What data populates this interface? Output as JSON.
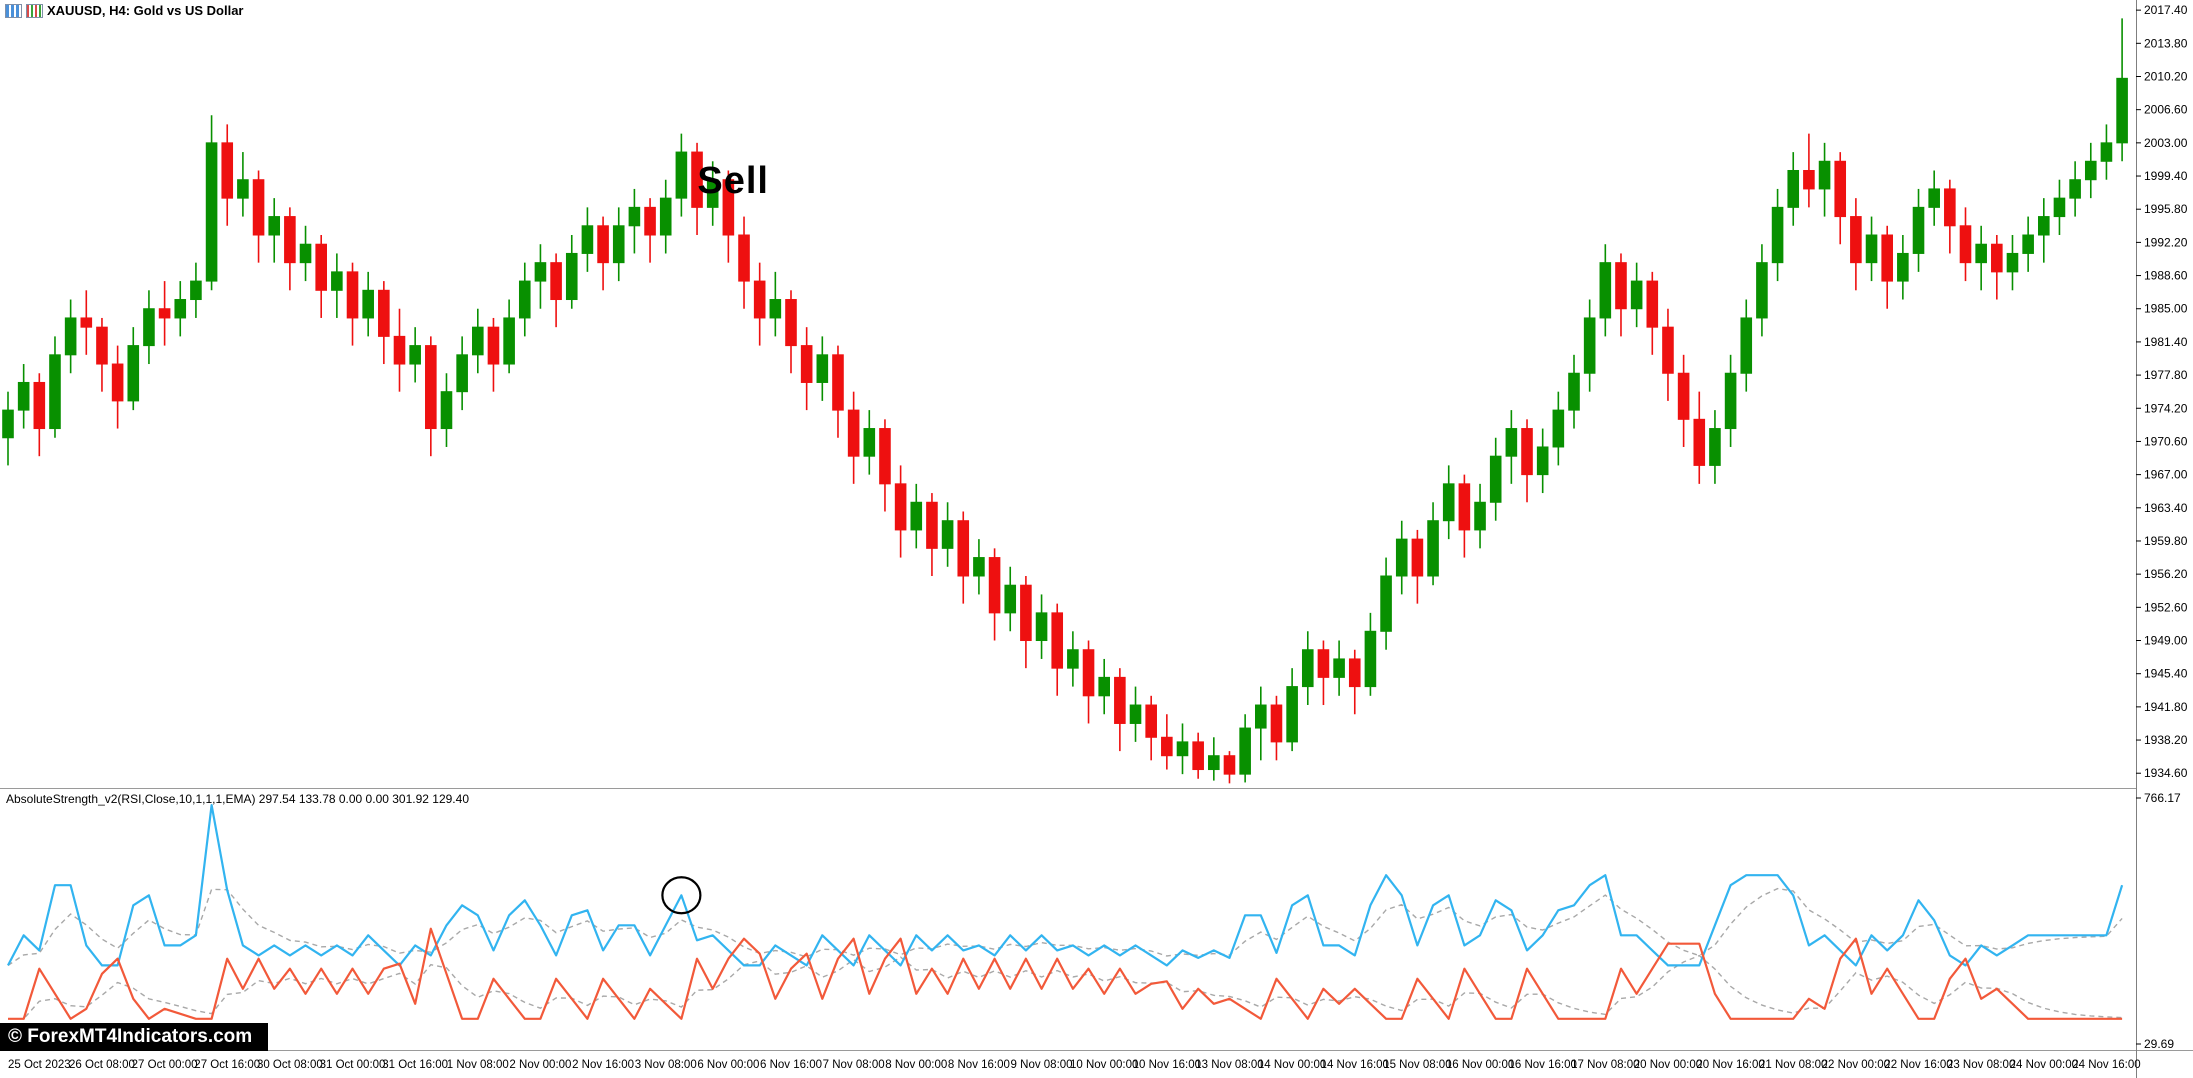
{
  "window": {
    "title": "XAUUSD, H4: Gold vs US Dollar",
    "icon_names": [
      "bar-chart-icon",
      "candlestick-chart-icon"
    ]
  },
  "annotations": {
    "sell_text": "Sell",
    "sell_candle_index": 43,
    "circle_candle_index": 43
  },
  "watermark": {
    "text": "© ForexMT4Indicators.com",
    "bg_color": "#000000",
    "text_color": "#ffffff"
  },
  "indicator_panel": {
    "header": "AbsoluteStrength_v2(RSI,Close,10,1,1,1,EMA) 297.54 133.78 0.00 0.00 301.92 129.40",
    "axis_max_label": "766.17",
    "axis_min_label": "29.69"
  },
  "chart_data": {
    "type": "candlestick",
    "symbol": "XAUUSD",
    "timeframe": "H4",
    "description": "Gold vs US Dollar",
    "price_axis_ticks": [
      2017.4,
      2013.8,
      2010.2,
      2006.6,
      2003.0,
      1999.4,
      1995.8,
      1992.2,
      1988.6,
      1985.0,
      1981.4,
      1977.8,
      1974.2,
      1970.6,
      1967.0,
      1963.4,
      1959.8,
      1956.2,
      1952.6,
      1949.0,
      1945.4,
      1941.8,
      1938.2,
      1934.6
    ],
    "time_axis_labels": [
      "25 Oct 2023",
      "26 Oct 08:00",
      "27 Oct 00:00",
      "27 Oct 16:00",
      "30 Oct 08:00",
      "31 Oct 00:00",
      "31 Oct 16:00",
      "1 Nov 08:00",
      "2 Nov 00:00",
      "2 Nov 16:00",
      "3 Nov 08:00",
      "6 Nov 00:00",
      "6 Nov 16:00",
      "7 Nov 08:00",
      "8 Nov 00:00",
      "8 Nov 16:00",
      "9 Nov 08:00",
      "10 Nov 00:00",
      "10 Nov 16:00",
      "13 Nov 08:00",
      "14 Nov 00:00",
      "14 Nov 16:00",
      "15 Nov 08:00",
      "16 Nov 00:00",
      "16 Nov 16:00",
      "17 Nov 08:00",
      "20 Nov 00:00",
      "20 Nov 16:00",
      "21 Nov 08:00",
      "22 Nov 00:00",
      "22 Nov 16:00",
      "23 Nov 08:00",
      "24 Nov 00:00",
      "24 Nov 16:00"
    ],
    "bars_per_time_label": 4,
    "first_label_bar_index": 2,
    "candles_ohlc": [
      [
        1971,
        1976,
        1968,
        1974
      ],
      [
        1974,
        1979,
        1972,
        1977
      ],
      [
        1977,
        1978,
        1969,
        1972
      ],
      [
        1972,
        1982,
        1971,
        1980
      ],
      [
        1980,
        1986,
        1978,
        1984
      ],
      [
        1984,
        1987,
        1980,
        1983
      ],
      [
        1983,
        1984,
        1976,
        1979
      ],
      [
        1979,
        1981,
        1972,
        1975
      ],
      [
        1975,
        1983,
        1974,
        1981
      ],
      [
        1981,
        1987,
        1979,
        1985
      ],
      [
        1985,
        1988,
        1981,
        1984
      ],
      [
        1984,
        1988,
        1982,
        1986
      ],
      [
        1986,
        1990,
        1984,
        1988
      ],
      [
        1988,
        2006,
        1987,
        2003
      ],
      [
        2003,
        2005,
        1994,
        1997
      ],
      [
        1997,
        2002,
        1995,
        1999
      ],
      [
        1999,
        2000,
        1990,
        1993
      ],
      [
        1993,
        1997,
        1990,
        1995
      ],
      [
        1995,
        1996,
        1987,
        1990
      ],
      [
        1990,
        1994,
        1988,
        1992
      ],
      [
        1992,
        1993,
        1984,
        1987
      ],
      [
        1987,
        1991,
        1984,
        1989
      ],
      [
        1989,
        1990,
        1981,
        1984
      ],
      [
        1984,
        1989,
        1982,
        1987
      ],
      [
        1987,
        1988,
        1979,
        1982
      ],
      [
        1982,
        1985,
        1976,
        1979
      ],
      [
        1979,
        1983,
        1977,
        1981
      ],
      [
        1981,
        1982,
        1969,
        1972
      ],
      [
        1972,
        1978,
        1970,
        1976
      ],
      [
        1976,
        1982,
        1974,
        1980
      ],
      [
        1980,
        1985,
        1978,
        1983
      ],
      [
        1983,
        1984,
        1976,
        1979
      ],
      [
        1979,
        1986,
        1978,
        1984
      ],
      [
        1984,
        1990,
        1982,
        1988
      ],
      [
        1988,
        1992,
        1985,
        1990
      ],
      [
        1990,
        1991,
        1983,
        1986
      ],
      [
        1986,
        1993,
        1985,
        1991
      ],
      [
        1991,
        1996,
        1989,
        1994
      ],
      [
        1994,
        1995,
        1987,
        1990
      ],
      [
        1990,
        1996,
        1988,
        1994
      ],
      [
        1994,
        1998,
        1991,
        1996
      ],
      [
        1996,
        1997,
        1990,
        1993
      ],
      [
        1993,
        1999,
        1991,
        1997
      ],
      [
        1997,
        2004,
        1995,
        2002
      ],
      [
        2002,
        2003,
        1993,
        1996
      ],
      [
        1996,
        2001,
        1994,
        1999
      ],
      [
        1999,
        2000,
        1990,
        1993
      ],
      [
        1993,
        1995,
        1985,
        1988
      ],
      [
        1988,
        1990,
        1981,
        1984
      ],
      [
        1984,
        1989,
        1982,
        1986
      ],
      [
        1986,
        1987,
        1978,
        1981
      ],
      [
        1981,
        1983,
        1974,
        1977
      ],
      [
        1977,
        1982,
        1975,
        1980
      ],
      [
        1980,
        1981,
        1971,
        1974
      ],
      [
        1974,
        1976,
        1966,
        1969
      ],
      [
        1969,
        1974,
        1967,
        1972
      ],
      [
        1972,
        1973,
        1963,
        1966
      ],
      [
        1966,
        1968,
        1958,
        1961
      ],
      [
        1961,
        1966,
        1959,
        1964
      ],
      [
        1964,
        1965,
        1956,
        1959
      ],
      [
        1959,
        1964,
        1957,
        1962
      ],
      [
        1962,
        1963,
        1953,
        1956
      ],
      [
        1956,
        1960,
        1954,
        1958
      ],
      [
        1958,
        1959,
        1949,
        1952
      ],
      [
        1952,
        1957,
        1950,
        1955
      ],
      [
        1955,
        1956,
        1946,
        1949
      ],
      [
        1949,
        1954,
        1947,
        1952
      ],
      [
        1952,
        1953,
        1943,
        1946
      ],
      [
        1946,
        1950,
        1944,
        1948
      ],
      [
        1948,
        1949,
        1940,
        1943
      ],
      [
        1943,
        1947,
        1941,
        1945
      ],
      [
        1945,
        1946,
        1937,
        1940
      ],
      [
        1940,
        1944,
        1938,
        1942
      ],
      [
        1942,
        1943,
        1936,
        1938.5
      ],
      [
        1938.5,
        1941,
        1935,
        1936.5
      ],
      [
        1936.5,
        1940,
        1934.5,
        1938
      ],
      [
        1938,
        1939,
        1934,
        1935
      ],
      [
        1935,
        1938.5,
        1933.8,
        1936.5
      ],
      [
        1936.5,
        1937,
        1933.5,
        1934.5
      ],
      [
        1934.5,
        1941,
        1933.6,
        1939.5
      ],
      [
        1939.5,
        1944,
        1936,
        1942
      ],
      [
        1942,
        1943,
        1936,
        1938
      ],
      [
        1938,
        1946,
        1937,
        1944
      ],
      [
        1944,
        1950,
        1942,
        1948
      ],
      [
        1948,
        1949,
        1942,
        1945
      ],
      [
        1945,
        1949,
        1943,
        1947
      ],
      [
        1947,
        1948,
        1941,
        1944
      ],
      [
        1944,
        1952,
        1943,
        1950
      ],
      [
        1950,
        1958,
        1948,
        1956
      ],
      [
        1956,
        1962,
        1954,
        1960
      ],
      [
        1960,
        1961,
        1953,
        1956
      ],
      [
        1956,
        1964,
        1955,
        1962
      ],
      [
        1962,
        1968,
        1960,
        1966
      ],
      [
        1966,
        1967,
        1958,
        1961
      ],
      [
        1961,
        1966,
        1959,
        1964
      ],
      [
        1964,
        1971,
        1962,
        1969
      ],
      [
        1969,
        1974,
        1966,
        1972
      ],
      [
        1972,
        1973,
        1964,
        1967
      ],
      [
        1967,
        1972,
        1965,
        1970
      ],
      [
        1970,
        1976,
        1968,
        1974
      ],
      [
        1974,
        1980,
        1972,
        1978
      ],
      [
        1978,
        1986,
        1976,
        1984
      ],
      [
        1984,
        1992,
        1982,
        1990
      ],
      [
        1990,
        1991,
        1982,
        1985
      ],
      [
        1985,
        1990,
        1983,
        1988
      ],
      [
        1988,
        1989,
        1980,
        1983
      ],
      [
        1983,
        1985,
        1975,
        1978
      ],
      [
        1978,
        1980,
        1970,
        1973
      ],
      [
        1973,
        1976,
        1966,
        1968
      ],
      [
        1968,
        1974,
        1966,
        1972
      ],
      [
        1972,
        1980,
        1970,
        1978
      ],
      [
        1978,
        1986,
        1976,
        1984
      ],
      [
        1984,
        1992,
        1982,
        1990
      ],
      [
        1990,
        1998,
        1988,
        1996
      ],
      [
        1996,
        2002,
        1994,
        2000
      ],
      [
        2000,
        2004,
        1996,
        1998
      ],
      [
        1998,
        2003,
        1995,
        2001
      ],
      [
        2001,
        2002,
        1992,
        1995
      ],
      [
        1995,
        1997,
        1987,
        1990
      ],
      [
        1990,
        1995,
        1988,
        1993
      ],
      [
        1993,
        1994,
        1985,
        1988
      ],
      [
        1988,
        1993,
        1986,
        1991
      ],
      [
        1991,
        1998,
        1989,
        1996
      ],
      [
        1996,
        2000,
        1994,
        1998
      ],
      [
        1998,
        1999,
        1991,
        1994
      ],
      [
        1994,
        1996,
        1988,
        1990
      ],
      [
        1990,
        1994,
        1987,
        1992
      ],
      [
        1992,
        1993,
        1986,
        1989
      ],
      [
        1989,
        1993,
        1987,
        1991
      ],
      [
        1991,
        1995,
        1989,
        1993
      ],
      [
        1993,
        1997,
        1990,
        1995
      ],
      [
        1995,
        1999,
        1993,
        1997
      ],
      [
        1997,
        2001,
        1995,
        1999
      ],
      [
        1999,
        2003,
        1997,
        2001
      ],
      [
        2001,
        2005,
        1999,
        2003
      ],
      [
        2003,
        2016.5,
        2001,
        2010
      ]
    ],
    "indicator": {
      "name": "AbsoluteStrength_v2",
      "params": [
        "RSI",
        "Close",
        10,
        1,
        1,
        1,
        "EMA"
      ],
      "current_values": [
        297.54,
        133.78,
        0.0,
        0.0,
        301.92,
        129.4
      ],
      "axis_range": [
        29.69,
        766.17
      ]
    },
    "colors": {
      "bull_candle": "#089000",
      "bear_candle": "#ee1010",
      "bulls_line": "#32b4f0",
      "bears_line": "#f2593a",
      "signal_dashed": "#a8a8a8",
      "axis_text": "#000000",
      "separator": "#9a9a9a"
    }
  }
}
